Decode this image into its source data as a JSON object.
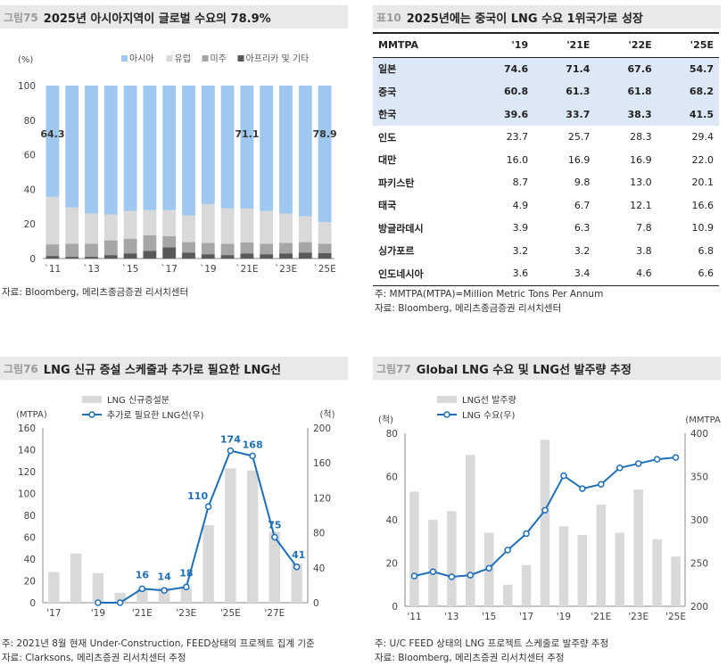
{
  "panel1": {
    "fig_no": "그림75",
    "title": "2025년 아시아지역이 글로벌 수요의 78.9%",
    "source": "자료: Bloomberg, 메리츠종금증권 리서치센터",
    "chart_data": {
      "type": "bar",
      "stacked": true,
      "ylabel": "(%)",
      "ylim": [
        0,
        100
      ],
      "yticks": [
        0,
        20,
        40,
        60,
        80,
        100
      ],
      "categories": [
        "`11",
        "`12",
        "`13",
        "`14",
        "`15",
        "`16",
        "`17",
        "`18",
        "`19",
        "`20",
        "`21E",
        "`22E",
        "`23E",
        "`24E",
        "`25E"
      ],
      "xtick_labels": [
        "`11",
        "`13",
        "`15",
        "`17",
        "`19",
        "`21E",
        "`23E",
        "`25E"
      ],
      "series": [
        {
          "name": "아시아",
          "color": "#9ec8f0",
          "values": [
            64.3,
            70.5,
            74,
            74.5,
            72.5,
            72,
            72,
            75,
            68.5,
            71,
            71.1,
            72.5,
            74,
            75.5,
            78.9
          ]
        },
        {
          "name": "유럽",
          "color": "#d9d9d9",
          "values": [
            27.5,
            21,
            17.5,
            15,
            16,
            14.5,
            15,
            15.5,
            22.5,
            20.5,
            19.5,
            19,
            17,
            15,
            12.5
          ]
        },
        {
          "name": "미주",
          "color": "#a6a6a6",
          "values": [
            6.7,
            7.5,
            7.5,
            8.5,
            8.5,
            9,
            6.5,
            6,
            6.5,
            6.5,
            6.4,
            6,
            6,
            6,
            5.5
          ]
        },
        {
          "name": "아프리카 및 기타",
          "color": "#595959",
          "values": [
            1.5,
            1,
            1,
            2,
            3,
            4.5,
            6.5,
            3.5,
            2.5,
            2,
            3,
            2.5,
            3,
            3.5,
            3.1
          ]
        }
      ],
      "annotations": [
        {
          "index": 0,
          "label": "64.3"
        },
        {
          "index": 10,
          "label": "71.1"
        },
        {
          "index": 14,
          "label": "78.9"
        }
      ]
    }
  },
  "panel2": {
    "fig_no": "표10",
    "title": "2025년에는 중국이 LNG 수요 1위국가로 성장",
    "notes": [
      "주: MMTPA(MTPA)=Million Metric Tons Per Annum",
      "자료: Bloomberg, 메리츠종금증권 리서치센터"
    ],
    "chart_data": {
      "type": "table",
      "columns": [
        "MMTPA",
        "'19",
        "'21E",
        "'22E",
        "'25E"
      ],
      "rows": [
        [
          "일본",
          "74.6",
          "71.4",
          "67.6",
          "54.7"
        ],
        [
          "중국",
          "60.8",
          "61.3",
          "61.8",
          "68.2"
        ],
        [
          "한국",
          "39.6",
          "33.7",
          "38.3",
          "41.5"
        ],
        [
          "인도",
          "23.7",
          "25.7",
          "28.3",
          "29.4"
        ],
        [
          "대만",
          "16.0",
          "16.9",
          "16.9",
          "22.0"
        ],
        [
          "파키스탄",
          "8.7",
          "9.8",
          "13.0",
          "20.1"
        ],
        [
          "태국",
          "4.9",
          "6.7",
          "12.1",
          "16.6"
        ],
        [
          "방글라데시",
          "3.9",
          "6.3",
          "7.8",
          "10.9"
        ],
        [
          "싱가포르",
          "3.2",
          "3.2",
          "3.8",
          "6.8"
        ],
        [
          "인도네시아",
          "3.6",
          "3.4",
          "4.6",
          "6.6"
        ]
      ],
      "highlight_rows": [
        0,
        1,
        2
      ],
      "highlight_color": "#dce8f6"
    }
  },
  "panel3": {
    "fig_no": "그림76",
    "title": "LNG 신규 증설 스케줄과 추가로 필요한 LNG선",
    "notes": [
      "주: 2021년 8월 현재 Under-Construction, FEED상태의 프로젝트 집계 기준",
      "자료: Clarksons, 메리츠증권 리서치센터 추정"
    ],
    "chart_data": {
      "type": "bar",
      "left_unit": "(MTPA)",
      "right_unit": "(척)",
      "ylim_left": [
        0,
        160
      ],
      "ylim_right": [
        0,
        200
      ],
      "yticks_left": [
        0,
        20,
        40,
        60,
        80,
        100,
        120,
        140,
        160
      ],
      "yticks_right": [
        0,
        40,
        80,
        120,
        160,
        200
      ],
      "categories": [
        "'17",
        "'18",
        "'19",
        "'20",
        "'21E",
        "'22E",
        "'23E",
        "'24E",
        "'25E",
        "'26E",
        "'27E",
        "'28E"
      ],
      "xtick_labels": [
        "'17",
        "'19",
        "'21E",
        "'23E",
        "'25E",
        "'27E"
      ],
      "series": [
        {
          "name": "LNG 신규증설분",
          "axis": "left",
          "color": "#d9d9d9",
          "values": [
            28,
            45,
            27,
            9,
            13,
            14,
            14,
            71,
            123,
            121,
            65,
            36
          ]
        },
        {
          "name": "추가로 필요한 LNG선(우)",
          "axis": "right",
          "color": "#1f6fb8",
          "type": "line",
          "values": [
            null,
            null,
            0,
            0,
            16,
            14,
            18,
            110,
            174,
            168,
            75,
            41
          ]
        }
      ],
      "data_labels": [
        {
          "index": 4,
          "label": "16"
        },
        {
          "index": 5,
          "label": "14"
        },
        {
          "index": 6,
          "label": "18"
        },
        {
          "index": 7,
          "label": "110"
        },
        {
          "index": 8,
          "label": "174"
        },
        {
          "index": 9,
          "label": "168"
        },
        {
          "index": 10,
          "label": "75"
        },
        {
          "index": 11,
          "label": "41"
        }
      ]
    }
  },
  "panel4": {
    "fig_no": "그림77",
    "title": "Global LNG 수요 및 LNG선 발주량 추정",
    "notes": [
      "주: U/C FEED 상태의 LNG 프로젝트 스케줄로 발주량 추정",
      "자료: Bloomberg, 메리츠증권 리서치센터 추정"
    ],
    "chart_data": {
      "type": "bar",
      "left_unit": "(척)",
      "right_unit": "(MMTPA)",
      "ylim_left": [
        0,
        80
      ],
      "ylim_right": [
        200,
        400
      ],
      "yticks_left": [
        0,
        20,
        40,
        60,
        80
      ],
      "yticks_right": [
        200,
        250,
        300,
        350,
        400
      ],
      "categories": [
        "'11",
        "'12",
        "'13",
        "'14",
        "'15",
        "'16",
        "'17",
        "'18",
        "'19",
        "'20",
        "'21E",
        "'22E",
        "'23E",
        "'24E",
        "'25E"
      ],
      "xtick_labels": [
        "'11",
        "'13",
        "'15",
        "'17",
        "'19",
        "'21E",
        "'23E",
        "'25E"
      ],
      "series": [
        {
          "name": "LNG선 발주량",
          "axis": "left",
          "color": "#d9d9d9",
          "values": [
            53,
            40,
            44,
            70,
            34,
            10,
            19,
            77,
            37,
            33,
            47,
            34,
            54,
            31,
            23
          ]
        },
        {
          "name": "LNG 수요(우)",
          "axis": "right",
          "color": "#1f6fb8",
          "type": "line",
          "values": [
            235,
            240,
            234,
            236,
            244,
            265,
            284,
            311,
            351,
            336,
            341,
            360,
            365,
            370,
            372
          ]
        }
      ]
    }
  }
}
